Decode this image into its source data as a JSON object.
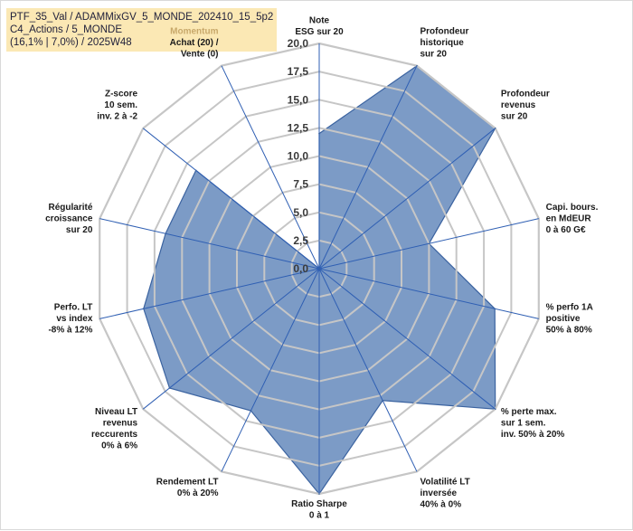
{
  "chart_data": {
    "type": "radar",
    "title_lines": [
      "PTF_35_Val / ADAMMixGV_5_MONDE_202410_15_5p2",
      "C4_Actions / 5_MONDE",
      "(16,1% | 7,0%) / 2025W48"
    ],
    "rmin": 0,
    "rmax": 20,
    "ticks": [
      "0,0",
      "2,5",
      "5,0",
      "7,5",
      "10,0",
      "12,5",
      "15,0",
      "17,5",
      "20,0"
    ],
    "grid": true,
    "axes": [
      {
        "lines": [
          "Note",
          "ESG sur 20"
        ],
        "value": 12
      },
      {
        "lines": [
          "Profondeur",
          "historique",
          "sur 20"
        ],
        "value": 20
      },
      {
        "lines": [
          "Profondeur",
          "revenus",
          "sur 20"
        ],
        "value": 20
      },
      {
        "lines": [
          "Capi. bours.",
          "en MdEUR",
          "0 à 60 G€"
        ],
        "value": 10
      },
      {
        "lines": [
          "% perfo 1A",
          "positive",
          "50% à 80%"
        ],
        "value": 16
      },
      {
        "lines": [
          "% perte max.",
          "sur 1 sem.",
          "inv. 50% à 20%"
        ],
        "value": 20
      },
      {
        "lines": [
          "Volatilité LT",
          "inversée",
          "40% à 0%"
        ],
        "value": 13
      },
      {
        "lines": [
          "Ratio Sharpe",
          "0 à 1"
        ],
        "value": 20
      },
      {
        "lines": [
          "Rendement LT",
          "0% à 20%"
        ],
        "value": 14
      },
      {
        "lines": [
          "Niveau LT",
          "revenus",
          "reccurents",
          "0% à 6%"
        ],
        "value": 17
      },
      {
        "lines": [
          "Perfo. LT",
          "vs index",
          "-8% à 12%"
        ],
        "value": 16
      },
      {
        "lines": [
          "Régularité",
          "croissance",
          "sur 20"
        ],
        "value": 14
      },
      {
        "lines": [
          "Z-score",
          "10 sem.",
          "inv. 2 à -2"
        ],
        "value": 14
      },
      {
        "lines": [
          "Momentum",
          "Achat (20) /",
          "Vente (0)"
        ],
        "value": 0
      }
    ],
    "colors": {
      "fill": "#5b82b8",
      "fill_opacity": 0.8,
      "stroke": "#3b63a0",
      "grid": "#c6c6c6",
      "spoke": "#2f5fb3",
      "momentum_label": "#c8a86a"
    }
  }
}
